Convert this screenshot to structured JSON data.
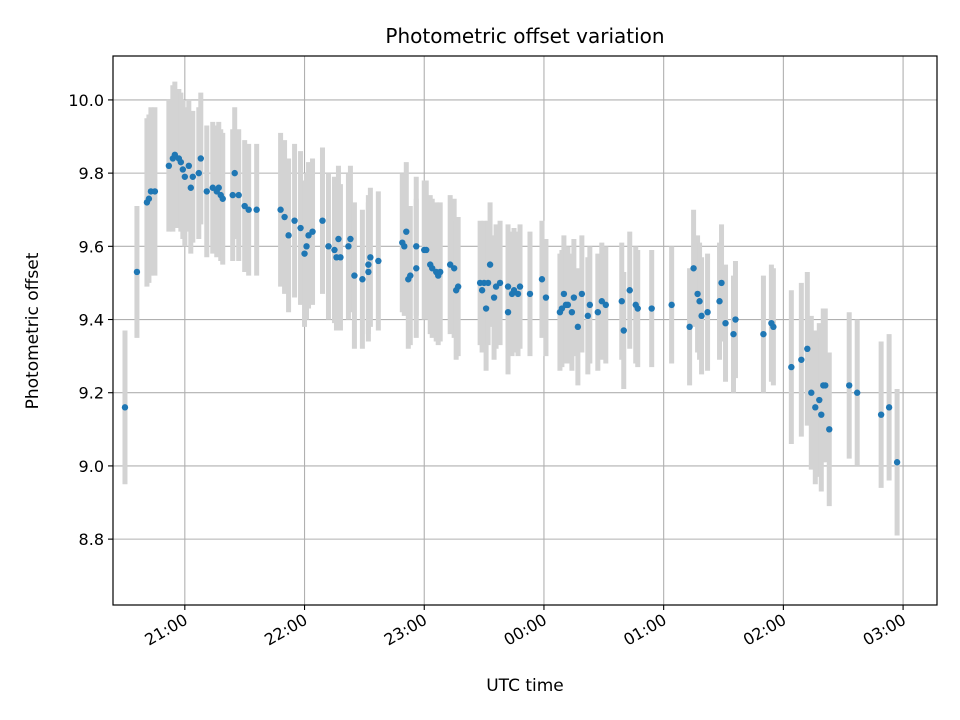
{
  "chart_data": {
    "type": "scatter",
    "title": "Photometric offset variation",
    "xlabel": "UTC time",
    "ylabel": "Photometric offset",
    "x_unit": "UTC time (HH:MM), points after 00:00 belong to the next day",
    "xlim": [
      "20:24",
      "03:17"
    ],
    "ylim": [
      8.62,
      10.12
    ],
    "x_ticks": [
      "21:00",
      "22:00",
      "23:00",
      "00:00",
      "01:00",
      "02:00",
      "03:00"
    ],
    "y_ticks": [
      "8.8",
      "9.0",
      "9.2",
      "9.4",
      "9.6",
      "9.8",
      "10.0"
    ],
    "grid": true,
    "legend": "none",
    "colors": {
      "marker": "#1f77b4",
      "errorbar": "#d3d3d3",
      "grid": "#b0b0b0"
    },
    "points": [
      [
        "20:30",
        9.16,
        0.21
      ],
      [
        "20:36",
        9.53,
        0.18
      ],
      [
        "20:41",
        9.72,
        0.23
      ],
      [
        "20:42",
        9.73,
        0.23
      ],
      [
        "20:43",
        9.75,
        0.23
      ],
      [
        "20:45",
        9.75,
        0.23
      ],
      [
        "20:52",
        9.82,
        0.18
      ],
      [
        "20:54",
        9.84,
        0.2
      ],
      [
        "20:55",
        9.85,
        0.2
      ],
      [
        "20:57",
        9.84,
        0.19
      ],
      [
        "20:58",
        9.83,
        0.19
      ],
      [
        "20:59",
        9.81,
        0.19
      ],
      [
        "21:00",
        9.79,
        0.19
      ],
      [
        "21:02",
        9.82,
        0.18
      ],
      [
        "21:03",
        9.76,
        0.18
      ],
      [
        "21:04",
        9.79,
        0.18
      ],
      [
        "21:07",
        9.8,
        0.18
      ],
      [
        "21:08",
        9.84,
        0.18
      ],
      [
        "21:11",
        9.75,
        0.18
      ],
      [
        "21:14",
        9.76,
        0.18
      ],
      [
        "21:16",
        9.75,
        0.18
      ],
      [
        "21:17",
        9.76,
        0.18
      ],
      [
        "21:18",
        9.74,
        0.18
      ],
      [
        "21:19",
        9.73,
        0.18
      ],
      [
        "21:24",
        9.74,
        0.18
      ],
      [
        "21:25",
        9.8,
        0.18
      ],
      [
        "21:27",
        9.74,
        0.18
      ],
      [
        "21:30",
        9.71,
        0.18
      ],
      [
        "21:32",
        9.7,
        0.18
      ],
      [
        "21:36",
        9.7,
        0.18
      ],
      [
        "21:48",
        9.7,
        0.21
      ],
      [
        "21:50",
        9.68,
        0.21
      ],
      [
        "21:52",
        9.63,
        0.21
      ],
      [
        "21:55",
        9.67,
        0.21
      ],
      [
        "21:58",
        9.65,
        0.21
      ],
      [
        "22:00",
        9.58,
        0.2
      ],
      [
        "22:01",
        9.6,
        0.2
      ],
      [
        "22:02",
        9.63,
        0.2
      ],
      [
        "22:04",
        9.64,
        0.2
      ],
      [
        "22:09",
        9.67,
        0.2
      ],
      [
        "22:12",
        9.6,
        0.2
      ],
      [
        "22:15",
        9.59,
        0.2
      ],
      [
        "22:16",
        9.57,
        0.2
      ],
      [
        "22:17",
        9.62,
        0.2
      ],
      [
        "22:18",
        9.57,
        0.2
      ],
      [
        "22:22",
        9.6,
        0.2
      ],
      [
        "22:23",
        9.62,
        0.2
      ],
      [
        "22:25",
        9.52,
        0.2
      ],
      [
        "22:29",
        9.51,
        0.19
      ],
      [
        "22:32",
        9.53,
        0.19
      ],
      [
        "22:32",
        9.55,
        0.19
      ],
      [
        "22:33",
        9.57,
        0.19
      ],
      [
        "22:37",
        9.56,
        0.19
      ],
      [
        "22:49",
        9.61,
        0.19
      ],
      [
        "22:50",
        9.6,
        0.19
      ],
      [
        "22:51",
        9.64,
        0.19
      ],
      [
        "22:52",
        9.51,
        0.19
      ],
      [
        "22:53",
        9.52,
        0.19
      ],
      [
        "22:56",
        9.54,
        0.19
      ],
      [
        "22:56",
        9.6,
        0.19
      ],
      [
        "23:00",
        9.59,
        0.19
      ],
      [
        "23:01",
        9.59,
        0.19
      ],
      [
        "23:03",
        9.55,
        0.19
      ],
      [
        "23:04",
        9.54,
        0.19
      ],
      [
        "23:06",
        9.53,
        0.19
      ],
      [
        "23:07",
        9.52,
        0.19
      ],
      [
        "23:08",
        9.53,
        0.19
      ],
      [
        "23:13",
        9.55,
        0.19
      ],
      [
        "23:15",
        9.54,
        0.19
      ],
      [
        "23:16",
        9.48,
        0.19
      ],
      [
        "23:17",
        9.49,
        0.19
      ],
      [
        "23:28",
        9.5,
        0.17
      ],
      [
        "23:29",
        9.48,
        0.17
      ],
      [
        "23:30",
        9.5,
        0.17
      ],
      [
        "23:31",
        9.43,
        0.17
      ],
      [
        "23:32",
        9.5,
        0.17
      ],
      [
        "23:33",
        9.55,
        0.17
      ],
      [
        "23:35",
        9.46,
        0.17
      ],
      [
        "23:36",
        9.49,
        0.17
      ],
      [
        "23:38",
        9.5,
        0.17
      ],
      [
        "23:42",
        9.49,
        0.17
      ],
      [
        "23:42",
        9.42,
        0.17
      ],
      [
        "23:44",
        9.47,
        0.17
      ],
      [
        "23:45",
        9.48,
        0.17
      ],
      [
        "23:47",
        9.47,
        0.17
      ],
      [
        "23:48",
        9.49,
        0.17
      ],
      [
        "23:53",
        9.47,
        0.17
      ],
      [
        "23:59",
        9.51,
        0.16
      ],
      [
        "00:01",
        9.46,
        0.16
      ],
      [
        "00:08",
        9.42,
        0.16
      ],
      [
        "00:09",
        9.43,
        0.16
      ],
      [
        "00:10",
        9.47,
        0.16
      ],
      [
        "00:11",
        9.44,
        0.16
      ],
      [
        "00:12",
        9.44,
        0.16
      ],
      [
        "00:14",
        9.42,
        0.16
      ],
      [
        "00:15",
        9.46,
        0.16
      ],
      [
        "00:17",
        9.38,
        0.16
      ],
      [
        "00:19",
        9.47,
        0.16
      ],
      [
        "00:22",
        9.41,
        0.16
      ],
      [
        "00:23",
        9.44,
        0.16
      ],
      [
        "00:27",
        9.42,
        0.16
      ],
      [
        "00:29",
        9.45,
        0.16
      ],
      [
        "00:31",
        9.44,
        0.16
      ],
      [
        "00:39",
        9.45,
        0.16
      ],
      [
        "00:40",
        9.37,
        0.16
      ],
      [
        "00:43",
        9.48,
        0.16
      ],
      [
        "00:46",
        9.44,
        0.16
      ],
      [
        "00:47",
        9.43,
        0.16
      ],
      [
        "00:54",
        9.43,
        0.16
      ],
      [
        "01:04",
        9.44,
        0.16
      ],
      [
        "01:13",
        9.38,
        0.16
      ],
      [
        "01:15",
        9.54,
        0.16
      ],
      [
        "01:17",
        9.47,
        0.16
      ],
      [
        "01:18",
        9.45,
        0.16
      ],
      [
        "01:19",
        9.41,
        0.16
      ],
      [
        "01:22",
        9.42,
        0.16
      ],
      [
        "01:28",
        9.45,
        0.16
      ],
      [
        "01:29",
        9.5,
        0.16
      ],
      [
        "01:31",
        9.39,
        0.16
      ],
      [
        "01:35",
        9.36,
        0.16
      ],
      [
        "01:36",
        9.4,
        0.16
      ],
      [
        "01:50",
        9.36,
        0.16
      ],
      [
        "01:54",
        9.39,
        0.16
      ],
      [
        "01:55",
        9.38,
        0.16
      ],
      [
        "02:04",
        9.27,
        0.21
      ],
      [
        "02:09",
        9.29,
        0.21
      ],
      [
        "02:12",
        9.32,
        0.21
      ],
      [
        "02:14",
        9.2,
        0.21
      ],
      [
        "02:16",
        9.16,
        0.21
      ],
      [
        "02:18",
        9.18,
        0.21
      ],
      [
        "02:19",
        9.14,
        0.21
      ],
      [
        "02:20",
        9.22,
        0.21
      ],
      [
        "02:21",
        9.22,
        0.21
      ],
      [
        "02:23",
        9.1,
        0.21
      ],
      [
        "02:33",
        9.22,
        0.2
      ],
      [
        "02:37",
        9.2,
        0.2
      ],
      [
        "02:49",
        9.14,
        0.2
      ],
      [
        "02:53",
        9.16,
        0.2
      ],
      [
        "02:57",
        9.01,
        0.2
      ]
    ]
  }
}
